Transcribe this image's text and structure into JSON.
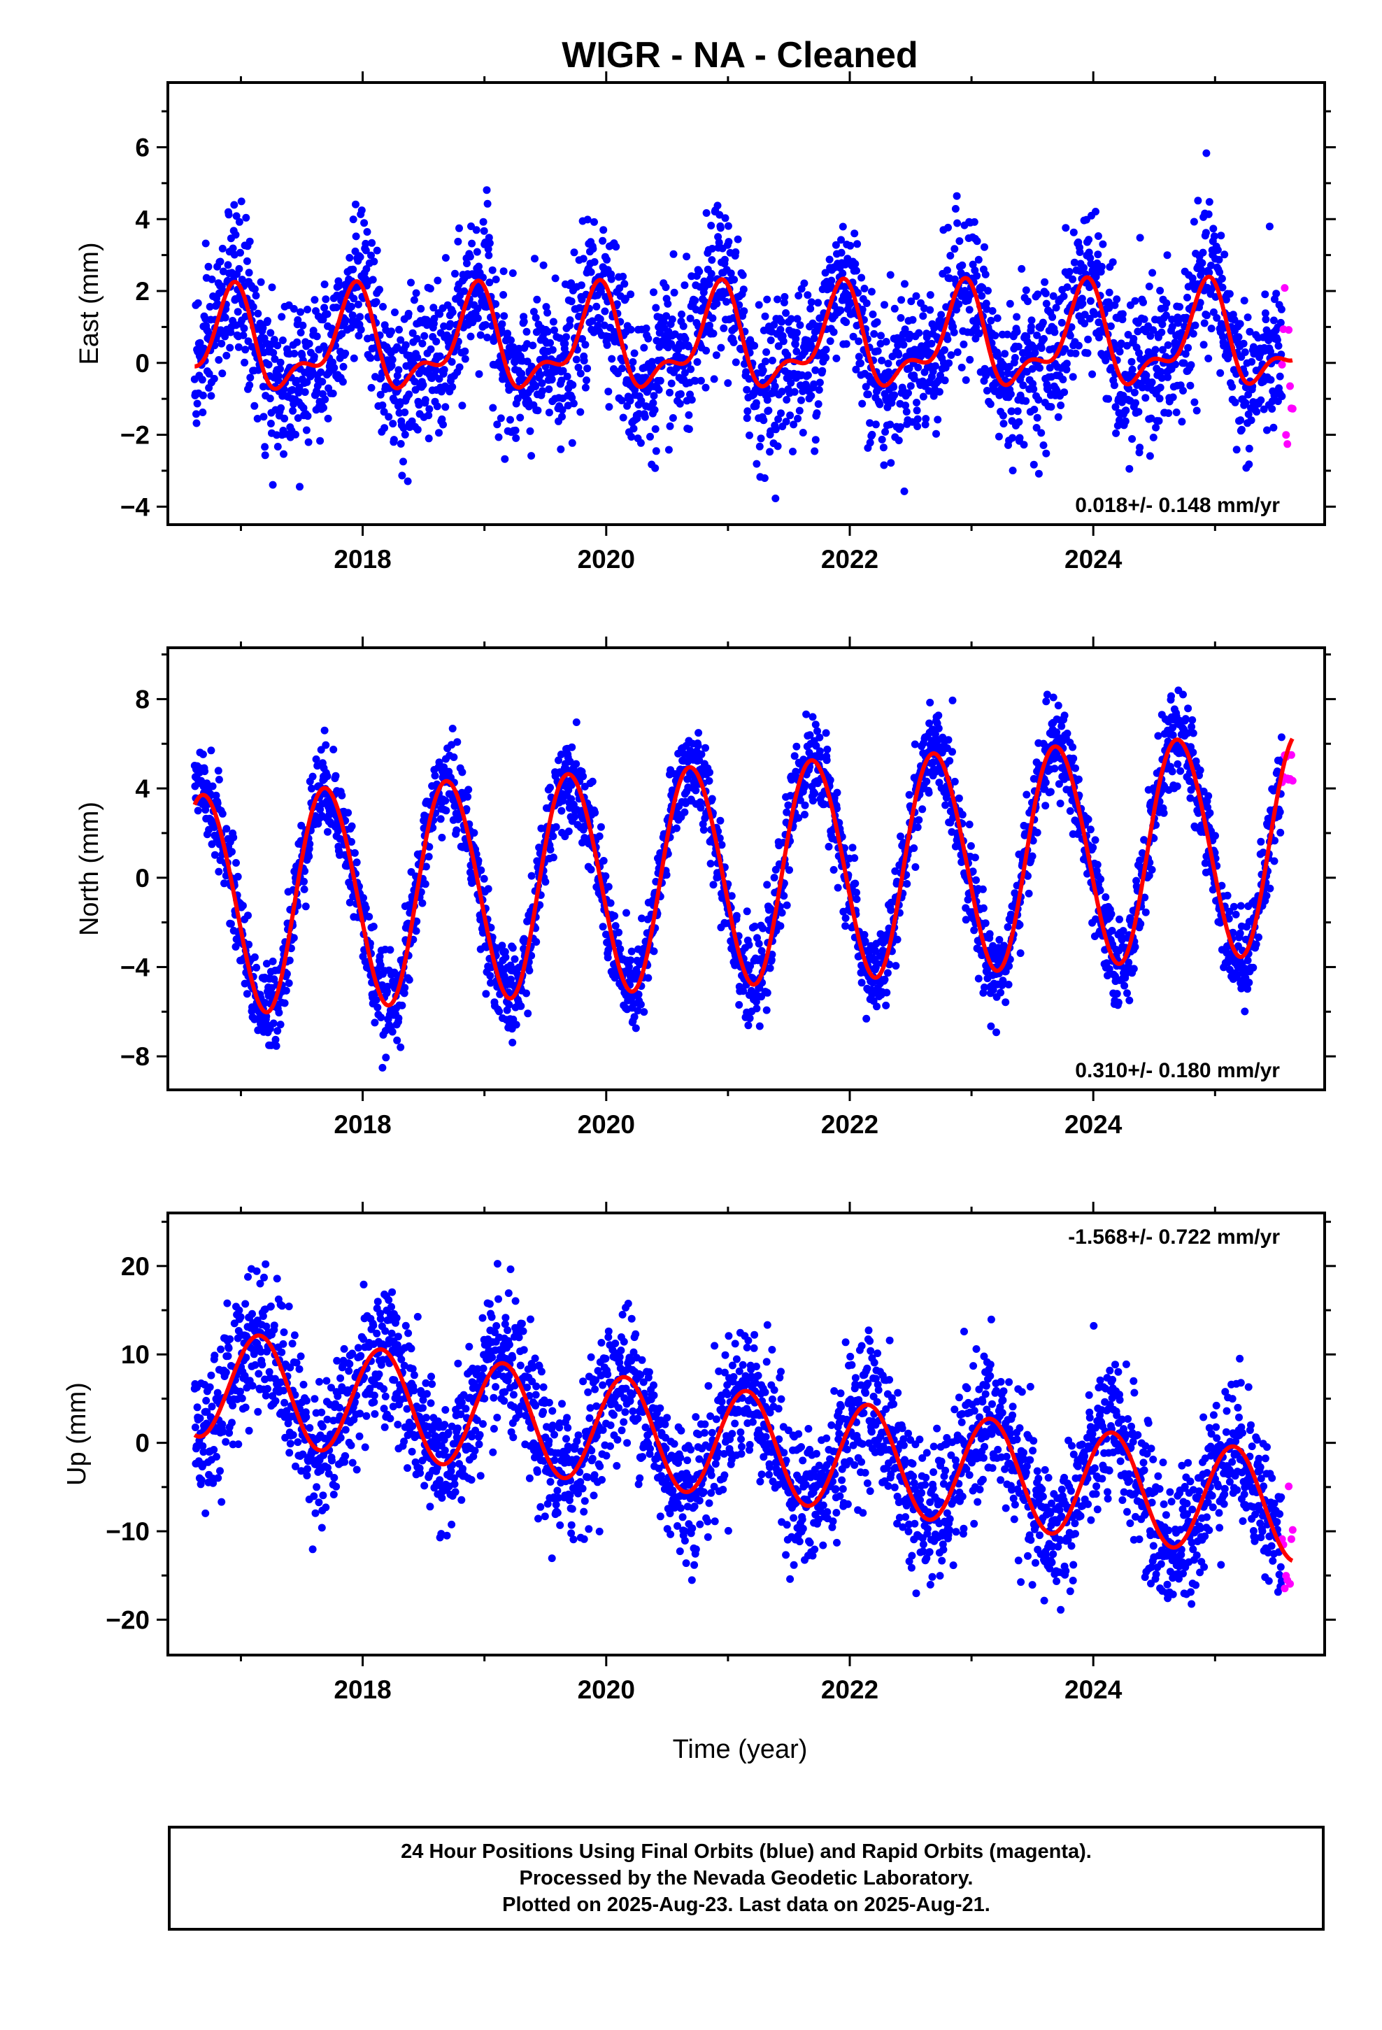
{
  "title": "WIGR  - NA - Cleaned",
  "xlabel": "Time (year)",
  "footer": {
    "line1": "24 Hour Positions Using Final Orbits (blue) and Rapid Orbits (magenta).",
    "line2": "Processed by the Nevada Geodetic Laboratory.",
    "line3": "Plotted on 2025-Aug-23. Last data on 2025-Aug-21."
  },
  "colors": {
    "final_orbits": "#0000ff",
    "rapid_orbits": "#ff00ff",
    "model_fit": "#ff0000",
    "axes": "#000000"
  },
  "chart_data": [
    {
      "type": "scatter",
      "component": "east",
      "ylabel": "East (mm)",
      "rate_label": "0.018+/- 0.148 mm/yr",
      "rate_position": "bottom-right",
      "xlim": [
        2016.4,
        2025.9
      ],
      "ylim": [
        -4.5,
        7.8
      ],
      "yticks": [
        -4,
        -2,
        0,
        2,
        4,
        6
      ],
      "xticks": [
        2018,
        2020,
        2022,
        2024
      ],
      "data_start": 2016.62,
      "data_end": 2025.64,
      "rapid_start": 2025.55,
      "rate": 0.018,
      "scatter_sd": 1.05,
      "model": {
        "offset": 0.55,
        "annual_cos": 1.05,
        "annual_sin": -0.6,
        "semiannual_cos": 0.55,
        "semiannual_sin": -0.25
      },
      "series": [
        {
          "name": "Final Orbits (blue)",
          "color": "#0000ff"
        },
        {
          "name": "Rapid Orbits (magenta)",
          "color": "#ff00ff"
        },
        {
          "name": "model",
          "color": "#ff0000"
        }
      ]
    },
    {
      "type": "scatter",
      "component": "north",
      "ylabel": "North (mm)",
      "rate_label": "0.310+/- 0.180 mm/yr",
      "rate_position": "bottom-right",
      "xlim": [
        2016.4,
        2025.9
      ],
      "ylim": [
        -9.5,
        10.3
      ],
      "yticks": [
        -8,
        -4,
        0,
        4,
        8
      ],
      "xticks": [
        2018,
        2020,
        2022,
        2024
      ],
      "data_start": 2016.62,
      "data_end": 2025.64,
      "rapid_start": 2025.55,
      "rate": 0.31,
      "scatter_sd": 1.0,
      "model": {
        "offset": 0.2,
        "annual_cos": -1.5,
        "annual_sin": -4.7,
        "semiannual_cos": 0.2,
        "semiannual_sin": 0.1
      },
      "series": [
        {
          "name": "Final Orbits (blue)",
          "color": "#0000ff"
        },
        {
          "name": "Rapid Orbits (magenta)",
          "color": "#ff00ff"
        },
        {
          "name": "model",
          "color": "#ff0000"
        }
      ]
    },
    {
      "type": "scatter",
      "component": "up",
      "ylabel": "Up (mm)",
      "rate_label": "-1.568+/- 0.722 mm/yr",
      "rate_position": "top-right",
      "xlim": [
        2016.4,
        2025.9
      ],
      "ylim": [
        -24,
        26
      ],
      "yticks": [
        -20,
        -10,
        0,
        10,
        20
      ],
      "xticks": [
        2018,
        2020,
        2022,
        2024
      ],
      "data_start": 2016.62,
      "data_end": 2025.64,
      "rapid_start": 2025.55,
      "rate": -1.568,
      "scatter_sd": 4.0,
      "model": {
        "offset": 0.0,
        "annual_cos": 3.5,
        "annual_sin": 5.0,
        "semiannual_cos": 0.0,
        "semiannual_sin": 0.0
      },
      "series": [
        {
          "name": "Final Orbits (blue)",
          "color": "#0000ff"
        },
        {
          "name": "Rapid Orbits (magenta)",
          "color": "#ff00ff"
        },
        {
          "name": "model",
          "color": "#ff0000"
        }
      ]
    }
  ]
}
